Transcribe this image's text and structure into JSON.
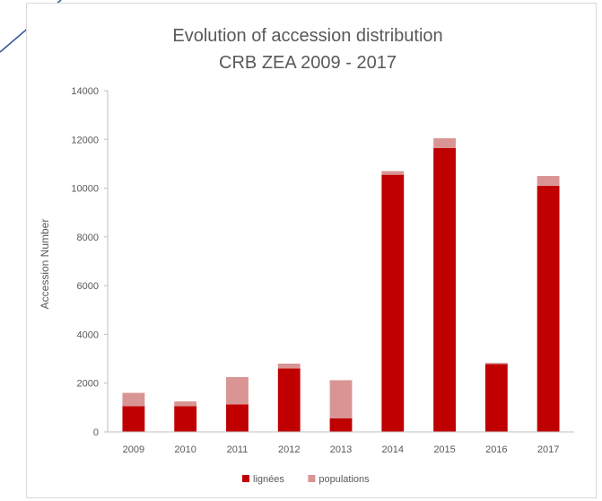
{
  "chart_data": {
    "type": "bar",
    "stacked": true,
    "title": "Evolution of accession distribution",
    "subtitle": "CRB ZEA 2009 - 2017",
    "xlabel": "",
    "ylabel": "Accession Number",
    "ylim": [
      0,
      14000
    ],
    "yticks": [
      0,
      2000,
      4000,
      6000,
      8000,
      10000,
      12000,
      14000
    ],
    "grid": false,
    "legend_position": "bottom",
    "categories": [
      "2009",
      "2010",
      "2011",
      "2012",
      "2013",
      "2014",
      "2015",
      "2016",
      "2017"
    ],
    "series": [
      {
        "name": "lignées",
        "color": "#c00000",
        "values": [
          1050,
          1050,
          1130,
          2600,
          560,
          10550,
          11650,
          2780,
          10100
        ]
      },
      {
        "name": "populations",
        "color": "#d99594",
        "values": [
          550,
          200,
          1120,
          200,
          1560,
          150,
          400,
          50,
          400
        ]
      }
    ]
  }
}
